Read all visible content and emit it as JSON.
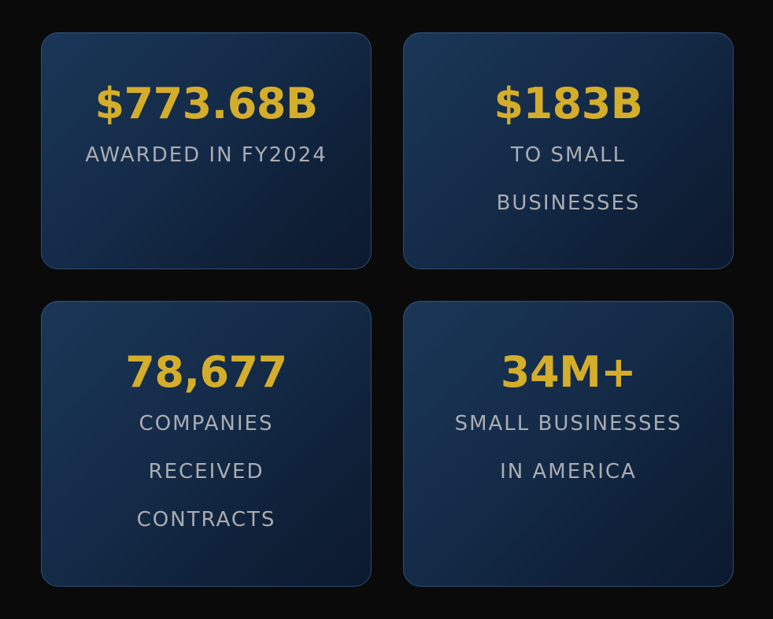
{
  "stats": [
    {
      "value": "$773.68B",
      "label": "AWARDED IN FY2024"
    },
    {
      "value": "$183B",
      "label": "TO SMALL BUSINESSES"
    },
    {
      "value": "78,677",
      "label": "COMPANIES RECEIVED CONTRACTS"
    },
    {
      "value": "34M+",
      "label": "SMALL BUSINESSES IN AMERICA"
    }
  ],
  "colors": {
    "page_background": "#0a0a0a",
    "card_background": "#142b48",
    "card_border": "#2e4c72",
    "value_accent": "#d4ad2b",
    "label_text": "#a9acb3"
  }
}
